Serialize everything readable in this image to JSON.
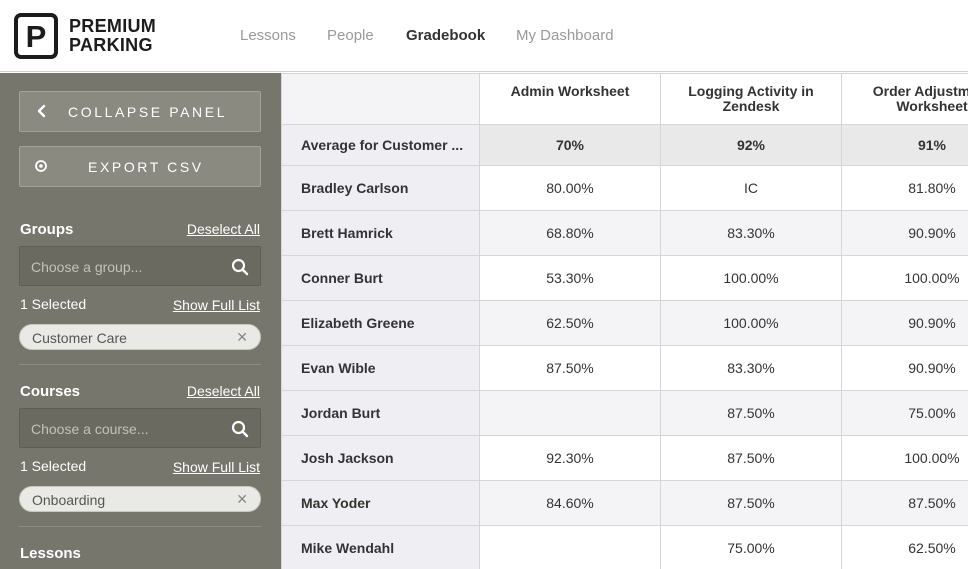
{
  "brand": {
    "logo_letter": "P",
    "line1": "PREMIUM",
    "line2": "PARKING"
  },
  "nav": {
    "items": [
      "Lessons",
      "People",
      "Gradebook",
      "My Dashboard"
    ],
    "active": "Gradebook"
  },
  "sidebar": {
    "collapse_label": "COLLAPSE PANEL",
    "export_label": "EXPORT CSV",
    "groups": {
      "title": "Groups",
      "deselect_label": "Deselect All",
      "placeholder": "Choose a group...",
      "selected_count": "1 Selected",
      "show_full_list": "Show Full List",
      "chip": "Customer Care"
    },
    "courses": {
      "title": "Courses",
      "deselect_label": "Deselect All",
      "placeholder": "Choose a course...",
      "selected_count": "1 Selected",
      "show_full_list": "Show Full List",
      "chip": "Onboarding"
    },
    "lessons": {
      "title": "Lessons"
    }
  },
  "table": {
    "headers": [
      "",
      "Admin Worksheet",
      "Logging Activity in Zendesk",
      "Order Adjustment Worksheet"
    ],
    "average": {
      "label": "Average for Customer ...",
      "values": [
        "70%",
        "92%",
        "91%"
      ]
    },
    "rows": [
      {
        "name": "Bradley Carlson",
        "values": [
          "80.00%",
          "IC",
          "81.80%"
        ]
      },
      {
        "name": "Brett Hamrick",
        "values": [
          "68.80%",
          "83.30%",
          "90.90%"
        ]
      },
      {
        "name": "Conner Burt",
        "values": [
          "53.30%",
          "100.00%",
          "100.00%"
        ]
      },
      {
        "name": "Elizabeth Greene",
        "values": [
          "62.50%",
          "100.00%",
          "90.90%"
        ]
      },
      {
        "name": "Evan Wible",
        "values": [
          "87.50%",
          "83.30%",
          "90.90%"
        ]
      },
      {
        "name": "Jordan Burt",
        "values": [
          "",
          "87.50%",
          "75.00%"
        ]
      },
      {
        "name": "Josh Jackson",
        "values": [
          "92.30%",
          "87.50%",
          "100.00%"
        ]
      },
      {
        "name": "Max Yoder",
        "values": [
          "84.60%",
          "87.50%",
          "87.50%"
        ]
      },
      {
        "name": "Mike Wendahl",
        "values": [
          "",
          "75.00%",
          "62.50%"
        ]
      }
    ]
  }
}
